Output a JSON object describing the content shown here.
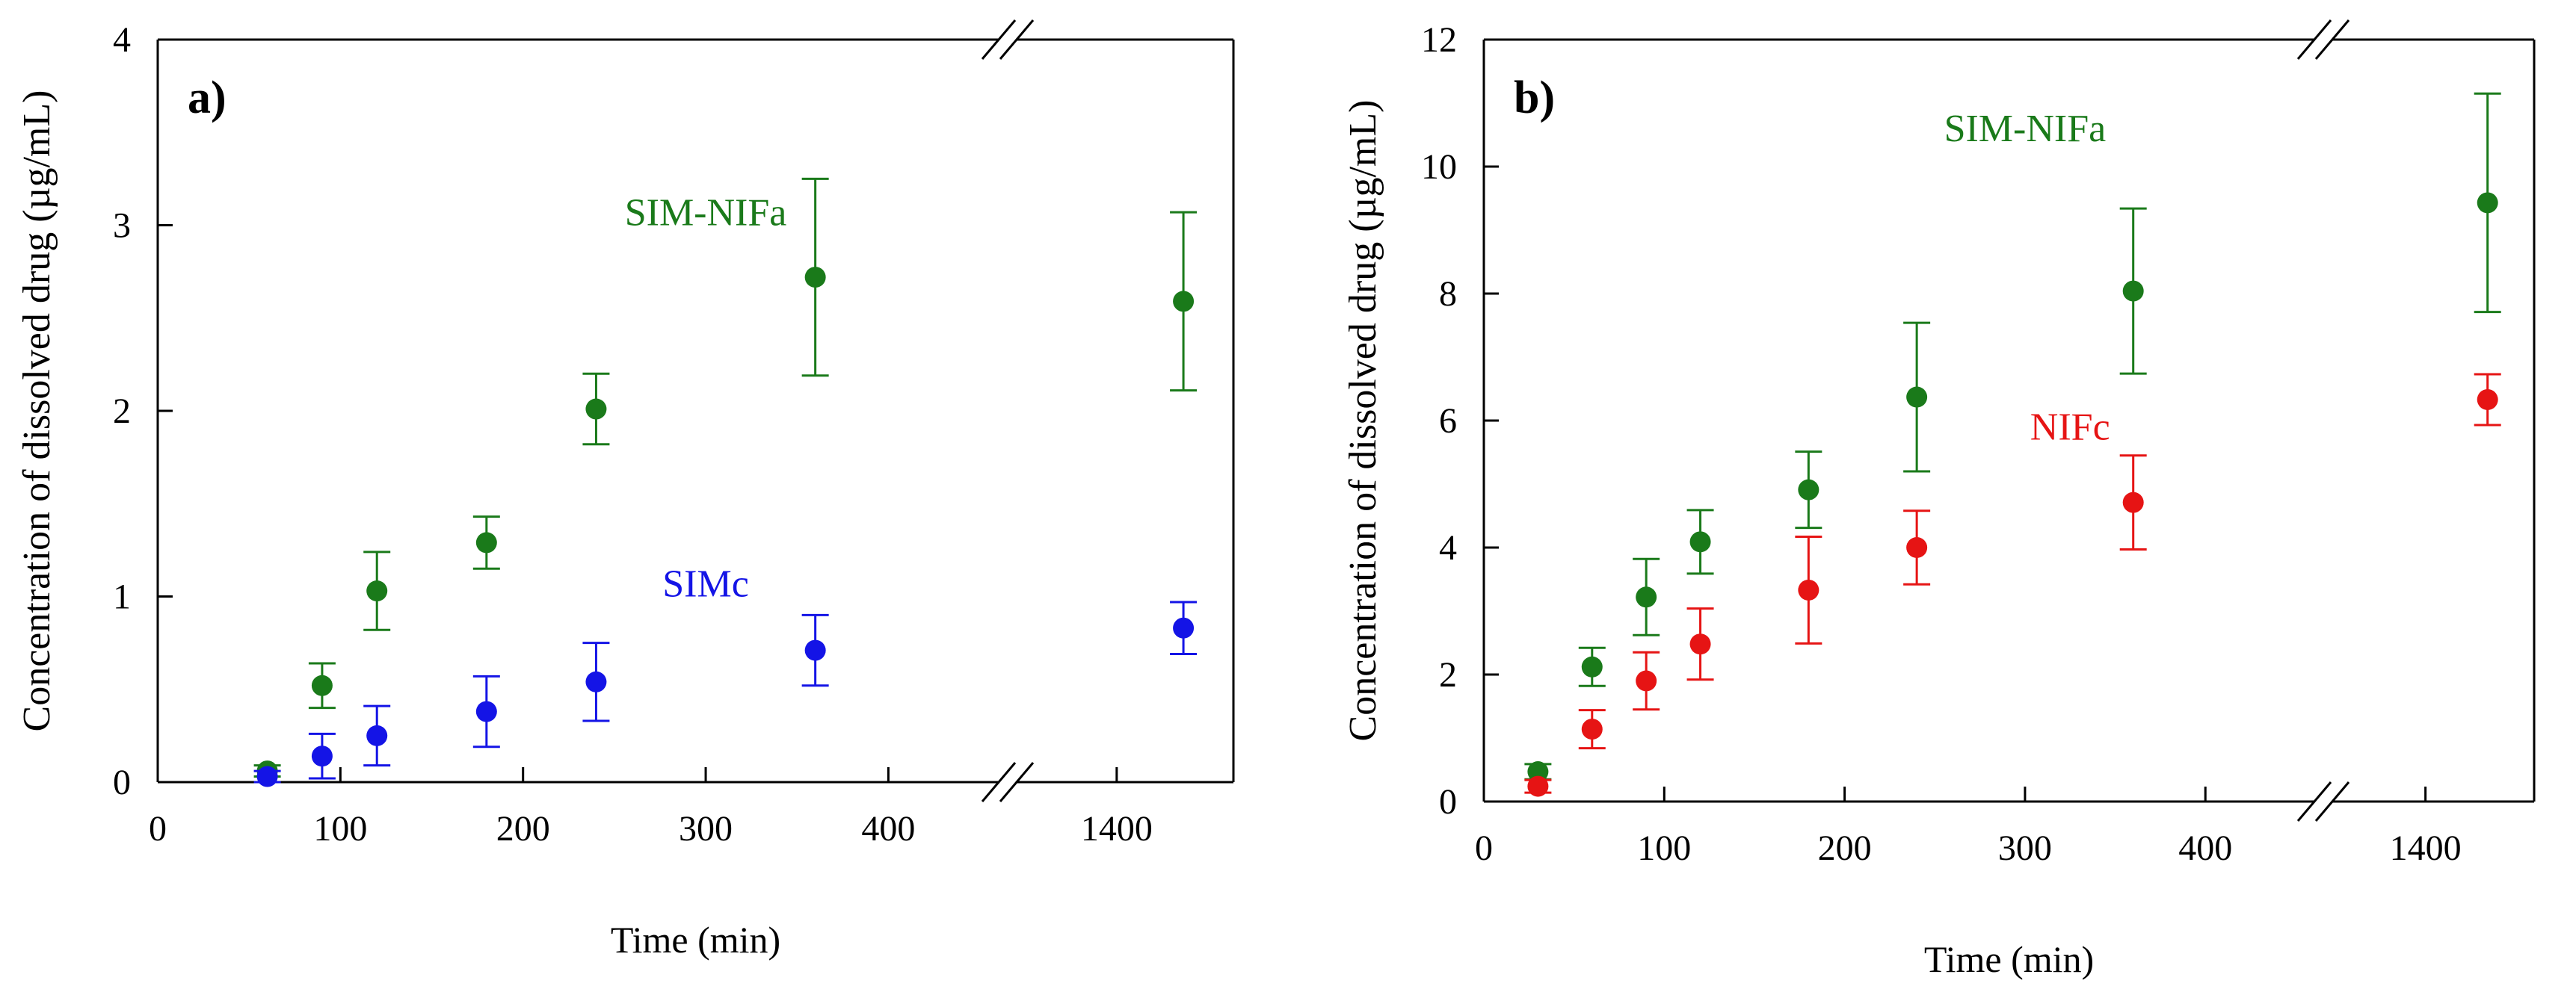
{
  "chart_data": [
    {
      "type": "scatter",
      "panel_label": "a)",
      "xlabel": "Time (min)",
      "ylabel": "Concentration of dissolved drug (µg/mL)",
      "ylim": [
        0,
        4
      ],
      "yticks": [
        "0",
        "1",
        "2",
        "3",
        "4"
      ],
      "xaxis_segments": [
        [
          0,
          460
        ],
        [
          1340,
          1470
        ]
      ],
      "xticks": [
        "0",
        "100",
        "200",
        "300",
        "400",
        "1400"
      ],
      "xtick_values": [
        0,
        100,
        200,
        300,
        400,
        1400
      ],
      "series": [
        {
          "name": "SIM-NIFa",
          "color": "#1a7a1a",
          "label_at": [
            300,
            3.0
          ],
          "x": [
            60,
            90,
            120,
            180,
            240,
            360,
            1440
          ],
          "y": [
            0.06,
            0.52,
            1.03,
            1.29,
            2.01,
            2.72,
            2.59
          ],
          "err": [
            0.03,
            0.12,
            0.21,
            0.14,
            0.19,
            0.53,
            0.48
          ]
        },
        {
          "name": "SIMc",
          "color": "#1414e6",
          "label_at": [
            300,
            1.0
          ],
          "x": [
            60,
            90,
            120,
            180,
            240,
            360,
            1440
          ],
          "y": [
            0.03,
            0.14,
            0.25,
            0.38,
            0.54,
            0.71,
            0.83
          ],
          "err": [
            0.03,
            0.12,
            0.16,
            0.19,
            0.21,
            0.19,
            0.14
          ]
        }
      ]
    },
    {
      "type": "scatter",
      "panel_label": "b)",
      "xlabel": "Time (min)",
      "ylabel": "Concentration of dissolved drug (µg/mL)",
      "ylim": [
        0,
        12
      ],
      "yticks": [
        "0",
        "2",
        "4",
        "6",
        "8",
        "10",
        "12"
      ],
      "xaxis_segments": [
        [
          0,
          460
        ],
        [
          1340,
          1470
        ]
      ],
      "xticks": [
        "0",
        "100",
        "200",
        "300",
        "400",
        "1400"
      ],
      "xtick_values": [
        0,
        100,
        200,
        300,
        400,
        1400
      ],
      "series": [
        {
          "name": "SIM-NIFa",
          "color": "#1a7a1a",
          "label_at": [
            300,
            10.4
          ],
          "x": [
            30,
            60,
            90,
            120,
            180,
            240,
            360,
            1440
          ],
          "y": [
            0.47,
            2.12,
            3.22,
            4.09,
            4.91,
            6.37,
            8.04,
            9.43
          ],
          "err": [
            0.12,
            0.3,
            0.6,
            0.5,
            0.6,
            1.17,
            1.3,
            1.72
          ]
        },
        {
          "name": "NIFc",
          "color": "#e61414",
          "label_at": [
            325,
            5.7
          ],
          "x": [
            30,
            60,
            90,
            120,
            180,
            240,
            360,
            1440
          ],
          "y": [
            0.24,
            1.14,
            1.9,
            2.48,
            3.33,
            4.0,
            4.71,
            6.33
          ],
          "err": [
            0.1,
            0.3,
            0.45,
            0.56,
            0.84,
            0.58,
            0.74,
            0.4
          ]
        }
      ]
    }
  ]
}
